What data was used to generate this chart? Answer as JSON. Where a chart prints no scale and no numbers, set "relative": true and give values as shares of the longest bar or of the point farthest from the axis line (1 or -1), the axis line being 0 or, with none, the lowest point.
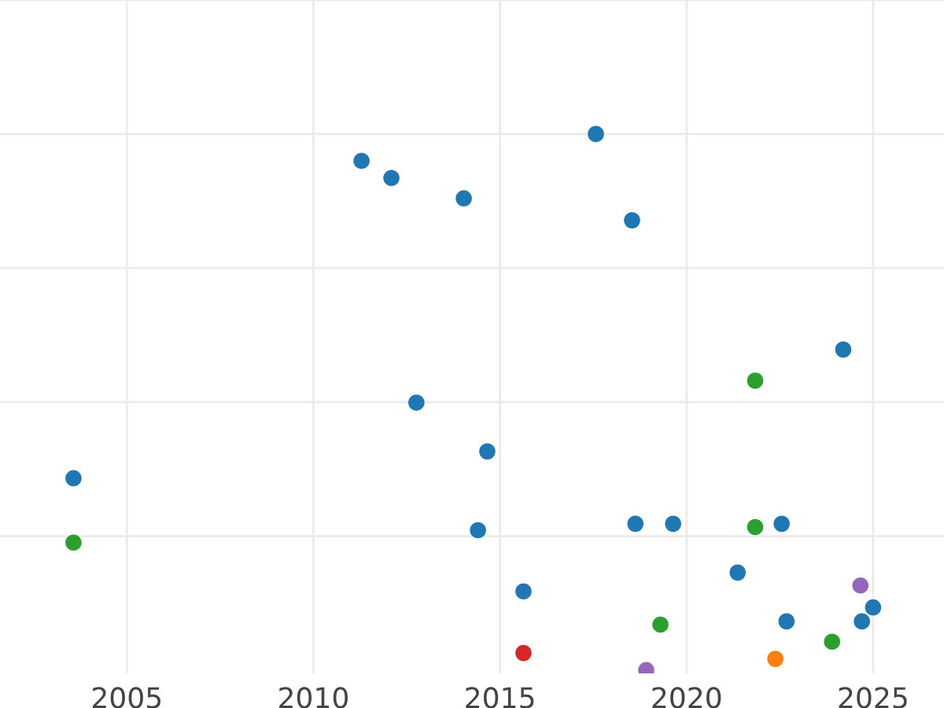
{
  "chart_data": {
    "type": "scatter",
    "relative": true,
    "xlim": [
      2001.6,
      2026.9
    ],
    "xticks": [
      2005,
      2010,
      2015,
      2020,
      2025
    ],
    "grid": true,
    "legend": false,
    "marker": "circle",
    "series": [
      {
        "color": "#1f77b4",
        "x": [
          2011.29,
          2012.09,
          2014.03,
          2017.57,
          2018.54,
          2024.2,
          2012.76,
          2014.66,
          2003.57,
          2014.41,
          2018.63,
          2019.64,
          2022.55,
          2021.37,
          2015.63,
          2025.0,
          2022.68,
          2024.7
        ],
        "values": [
          0.95,
          0.918,
          0.88,
          1.0,
          0.839,
          0.598,
          0.499,
          0.408,
          0.358,
          0.261,
          0.273,
          0.273,
          0.273,
          0.182,
          0.147,
          0.117,
          0.091,
          0.091
        ]
      },
      {
        "color": "#2ca02c",
        "x": [
          2021.84,
          2003.57,
          2021.84,
          2019.3,
          2023.9
        ],
        "values": [
          0.54,
          0.238,
          0.267,
          0.085,
          0.053
        ]
      },
      {
        "color": "#d62728",
        "x": [
          2015.63
        ],
        "values": [
          0.032
        ]
      },
      {
        "color": "#ff7f0e",
        "x": [
          2022.38
        ],
        "values": [
          0.021
        ]
      },
      {
        "color": "#9467bd",
        "x": [
          2024.66,
          2018.92
        ],
        "values": [
          0.158,
          0.0
        ]
      }
    ]
  }
}
